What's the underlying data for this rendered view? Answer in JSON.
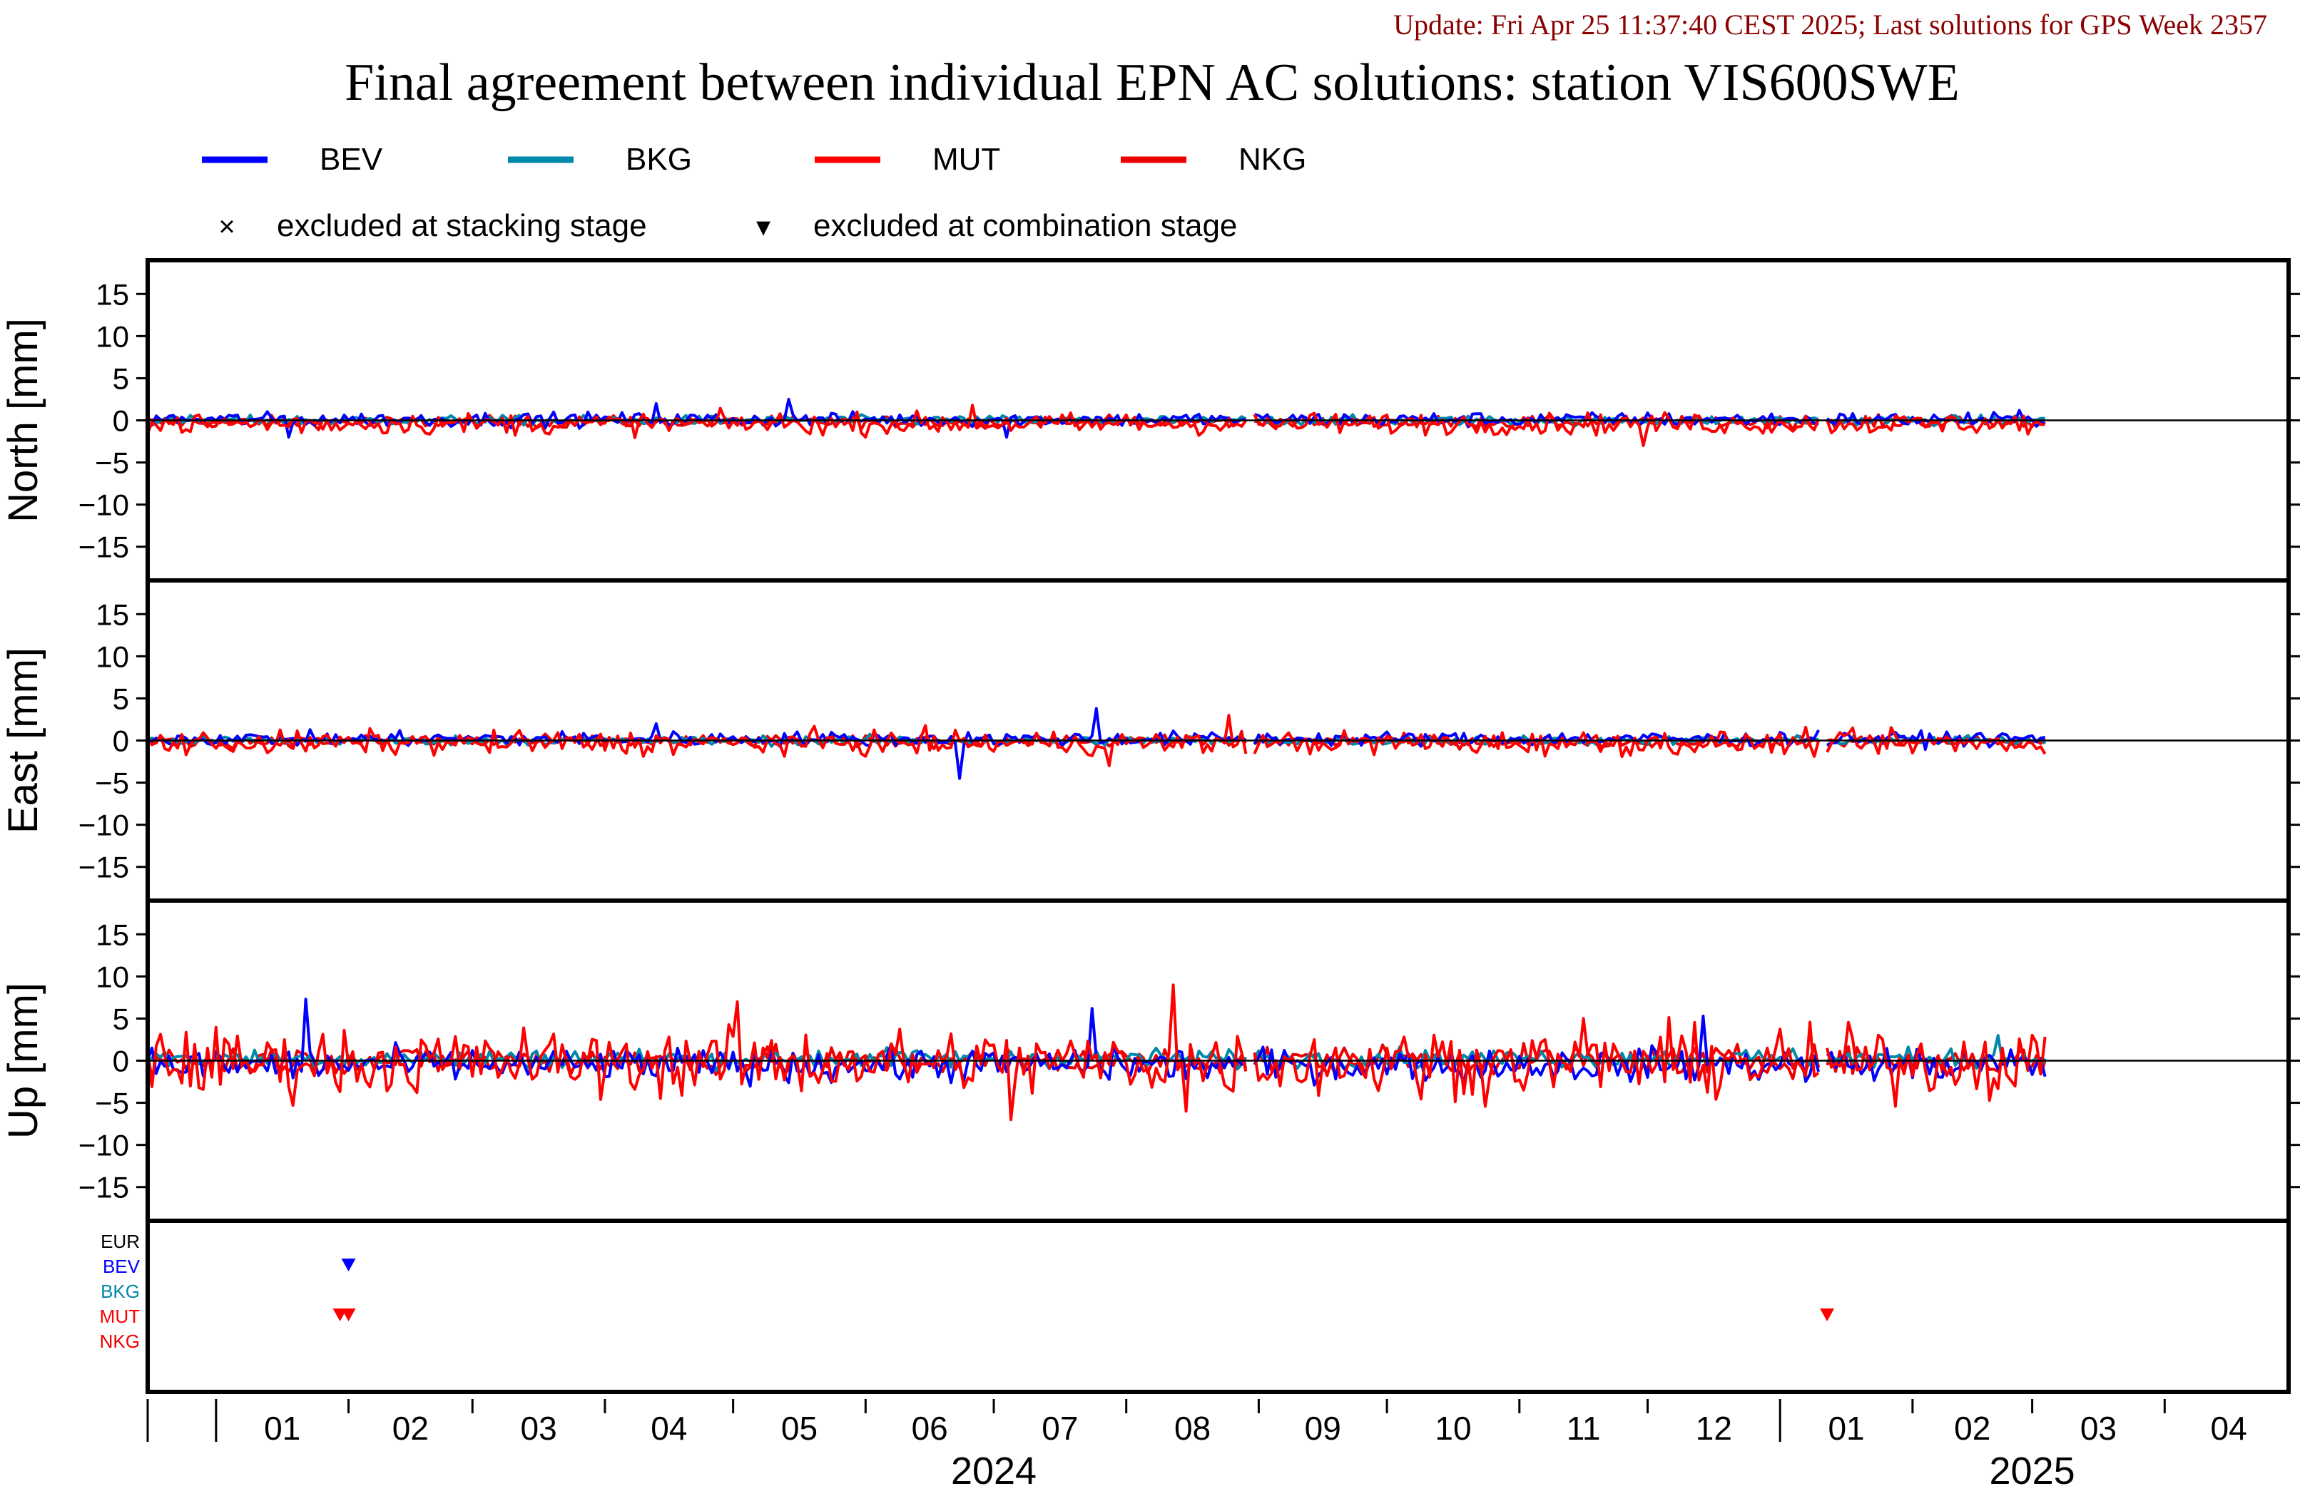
{
  "update_text": "Update: Fri Apr 25 11:37:40 CEST 2025; Last solutions for GPS Week 2357",
  "chart_data": {
    "type": "line",
    "title": "Final agreement between individual EPN AC solutions: station VIS600SWE",
    "legend": {
      "placement": "top",
      "series": [
        {
          "name": "BEV",
          "color": "#0000ff"
        },
        {
          "name": "BKG",
          "color": "#0088aa"
        },
        {
          "name": "MUT",
          "color": "#ff0000"
        },
        {
          "name": "NKG",
          "color": "#ee0000"
        }
      ],
      "markers": [
        {
          "symbol": "×",
          "label": "excluded at stacking stage"
        },
        {
          "symbol": "▾",
          "label": "excluded at combination stage"
        }
      ]
    },
    "x_axis": {
      "range": [
        "2023-12-16",
        "2025-04-30"
      ],
      "month_ticks": [
        {
          "label": "01",
          "date": "2024-01-01"
        },
        {
          "label": "02",
          "date": "2024-02-01"
        },
        {
          "label": "03",
          "date": "2024-03-01"
        },
        {
          "label": "04",
          "date": "2024-04-01"
        },
        {
          "label": "05",
          "date": "2024-05-01"
        },
        {
          "label": "06",
          "date": "2024-06-01"
        },
        {
          "label": "07",
          "date": "2024-07-01"
        },
        {
          "label": "08",
          "date": "2024-08-01"
        },
        {
          "label": "09",
          "date": "2024-09-01"
        },
        {
          "label": "10",
          "date": "2024-10-01"
        },
        {
          "label": "11",
          "date": "2024-11-01"
        },
        {
          "label": "12",
          "date": "2024-12-01"
        },
        {
          "label": "01",
          "date": "2025-01-01"
        },
        {
          "label": "02",
          "date": "2025-02-01"
        },
        {
          "label": "03",
          "date": "2025-03-01"
        },
        {
          "label": "04",
          "date": "2025-04-01"
        }
      ],
      "year_labels": [
        {
          "label": "2024",
          "date": "2024-07-01"
        },
        {
          "label": "2025",
          "date": "2025-03-01"
        }
      ]
    },
    "panels": [
      {
        "ylabel": "North [mm]",
        "ylim": [
          -19,
          19
        ],
        "yticks": [
          15,
          10,
          5,
          0,
          -5,
          -10,
          -15
        ],
        "series_amp": {
          "BEV": 0.6,
          "BKG": 0.4,
          "MUT": 0.9,
          "NKG": 0.5
        },
        "mean": {
          "BEV": 0.1,
          "BKG": 0.0,
          "MUT": -0.4,
          "NKG": -0.2
        },
        "spikes": [
          {
            "series": "BEV",
            "date": "2024-01-18",
            "value": -2.0
          },
          {
            "series": "BEV",
            "date": "2024-04-13",
            "value": 2.0
          },
          {
            "series": "BEV",
            "date": "2024-05-14",
            "value": 2.5
          },
          {
            "series": "BEV",
            "date": "2024-07-04",
            "value": -2.0
          },
          {
            "series": "MUT",
            "date": "2024-06-26",
            "value": 1.8
          },
          {
            "series": "MUT",
            "date": "2024-11-30",
            "value": -3.0
          }
        ]
      },
      {
        "ylabel": "East [mm]",
        "ylim": [
          -19,
          19
        ],
        "yticks": [
          15,
          10,
          5,
          0,
          -5,
          -10,
          -15
        ],
        "series_amp": {
          "BEV": 0.6,
          "BKG": 0.4,
          "MUT": 1.0,
          "NKG": 0.5
        },
        "mean": {
          "BEV": 0.2,
          "BKG": 0.0,
          "MUT": -0.3,
          "NKG": -0.1
        },
        "spikes": [
          {
            "series": "BEV",
            "date": "2024-06-23",
            "value": -4.5
          },
          {
            "series": "BEV",
            "date": "2024-07-25",
            "value": 3.8
          },
          {
            "series": "BEV",
            "date": "2024-04-13",
            "value": 2.0
          },
          {
            "series": "MUT",
            "date": "2024-08-25",
            "value": 3.0
          },
          {
            "series": "MUT",
            "date": "2024-07-28",
            "value": -3.0
          }
        ]
      },
      {
        "ylabel": "Up [mm]",
        "ylim": [
          -19,
          19
        ],
        "yticks": [
          15,
          10,
          5,
          0,
          -5,
          -10,
          -15
        ],
        "series_amp": {
          "BEV": 1.4,
          "BKG": 0.8,
          "MUT": 2.8,
          "NKG": 1.2
        },
        "mean": {
          "BEV": -0.5,
          "BKG": 0.3,
          "MUT": -0.2,
          "NKG": 0.0
        },
        "spikes": [
          {
            "series": "BEV",
            "date": "2024-01-22",
            "value": 7.3
          },
          {
            "series": "BEV",
            "date": "2024-07-24",
            "value": 6.2
          },
          {
            "series": "BEV",
            "date": "2024-12-14",
            "value": 5.3
          },
          {
            "series": "MUT",
            "date": "2024-08-12",
            "value": 9.0
          },
          {
            "series": "MUT",
            "date": "2024-05-02",
            "value": 7.0
          },
          {
            "series": "MUT",
            "date": "2024-07-05",
            "value": -7.0
          },
          {
            "series": "MUT",
            "date": "2024-08-15",
            "value": -6.0
          },
          {
            "series": "MUT",
            "date": "2024-11-16",
            "value": 5.0
          },
          {
            "series": "BKG",
            "date": "2025-02-21",
            "value": 3.0
          }
        ]
      }
    ],
    "exclusion_panel": {
      "rows": [
        {
          "label": "EUR",
          "color": "#000000"
        },
        {
          "label": "BEV",
          "color": "#0000ff"
        },
        {
          "label": "BKG",
          "color": "#0088aa"
        },
        {
          "label": "MUT",
          "color": "#ff0000"
        },
        {
          "label": "NKG",
          "color": "#ee0000"
        }
      ],
      "markers": [
        {
          "row": "BEV",
          "date": "2024-02-01",
          "color": "#0000ff"
        },
        {
          "row": "MUT",
          "date": "2024-01-30",
          "color": "#ff0000"
        },
        {
          "row": "MUT",
          "date": "2024-02-01",
          "color": "#ff0000"
        },
        {
          "row": "MUT",
          "date": "2025-01-12",
          "color": "#ff0000"
        }
      ]
    },
    "data_span": {
      "start": "2023-12-16",
      "end": "2025-03-04"
    },
    "gaps": [
      "2024-08-30",
      "2025-01-11"
    ]
  }
}
